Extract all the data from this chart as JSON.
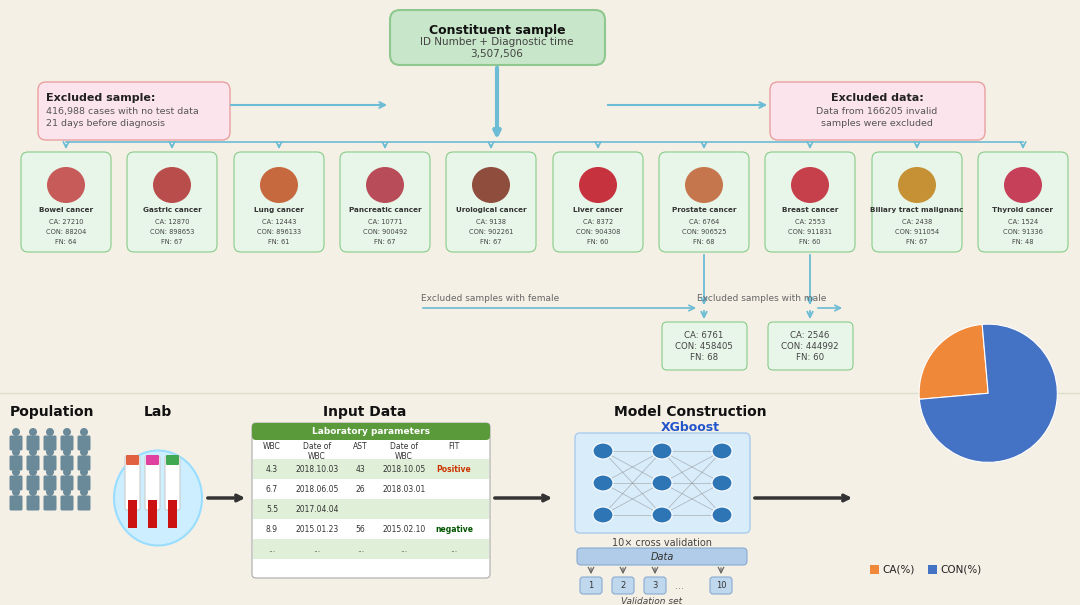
{
  "bg_color": "#f5f0e6",
  "constituent_bg": "#c8e6c9",
  "constituent_border": "#8ec88e",
  "excluded_sample_bg": "#fce4ec",
  "excluded_sample_border": "#e8a0a0",
  "excluded_data_bg": "#fce4ec",
  "excluded_data_border": "#e8a0a0",
  "cancer_box_bg": "#e8f5e9",
  "cancer_box_border": "#88cc88",
  "arrow_color": "#6bbcd4",
  "green_header_color": "#5a9a3a",
  "table_alt_color": "#e0f0d8",
  "node_color": "#2e75b6",
  "ca_color": "#f0883a",
  "con_color": "#4472c4",
  "pie_ca_pct": 25,
  "pie_con_pct": 75,
  "cancer_data": [
    {
      "name": "Bowel cancer",
      "ca": "27210",
      "con": "88204",
      "fn": "64"
    },
    {
      "name": "Gastric cancer",
      "ca": "12870",
      "con": "898653",
      "fn": "67"
    },
    {
      "name": "Lung cancer",
      "ca": "12443",
      "con": "896133",
      "fn": "61"
    },
    {
      "name": "Pancreatic cancer",
      "ca": "10771",
      "con": "900492",
      "fn": "67"
    },
    {
      "name": "Urological cancer",
      "ca": "9138",
      "con": "902261",
      "fn": "67"
    },
    {
      "name": "Liver cancer",
      "ca": "8372",
      "con": "904308",
      "fn": "60"
    },
    {
      "name": "Prostate cancer",
      "ca": "6764",
      "con": "906525",
      "fn": "68"
    },
    {
      "name": "Breast cancer",
      "ca": "2553",
      "con": "911831",
      "fn": "60"
    },
    {
      "name": "Biliary tract malignanc",
      "ca": "2438",
      "con": "911054",
      "fn": "67"
    },
    {
      "name": "Thyroid cancer",
      "ca": "1524",
      "con": "91336",
      "fn": "48"
    }
  ],
  "prostate_sub": {
    "ca": "6761",
    "con": "458405",
    "fn": "68"
  },
  "breast_sub": {
    "ca": "2546",
    "con": "444992",
    "fn": "60"
  },
  "table_rows": [
    [
      "4.3",
      "2018.10.03",
      "43",
      "2018.10.05",
      "Positive"
    ],
    [
      "6.7",
      "2018.06.05",
      "26",
      "2018.03.01",
      ""
    ],
    [
      "5.5",
      "2017.04.04",
      "",
      "",
      ""
    ],
    [
      "8.9",
      "2015.01.23",
      "56",
      "2015.02.10",
      "negative"
    ],
    [
      "...",
      "...",
      "...",
      "...",
      "..."
    ]
  ]
}
